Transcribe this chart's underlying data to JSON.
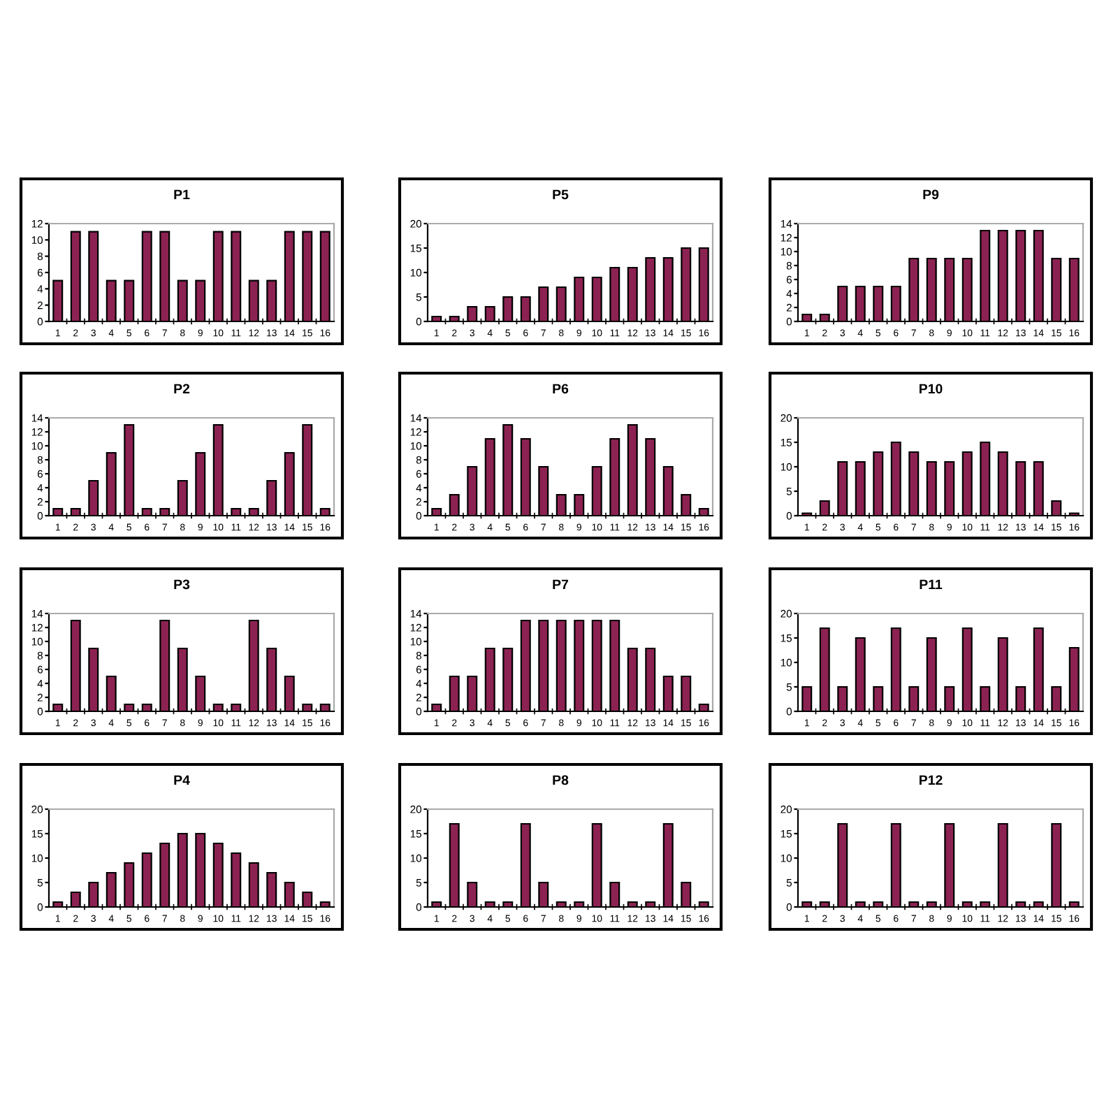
{
  "chart_data": [
    {
      "type": "bar",
      "title": "P1",
      "categories": [
        "1",
        "2",
        "3",
        "4",
        "5",
        "6",
        "7",
        "8",
        "9",
        "10",
        "11",
        "12",
        "13",
        "14",
        "15",
        "16"
      ],
      "values": [
        5,
        11,
        11,
        5,
        5,
        11,
        11,
        5,
        5,
        11,
        11,
        5,
        5,
        11,
        11,
        11
      ],
      "color": "#8b2252",
      "ylim": [
        0,
        12
      ],
      "yticks": [
        0,
        2,
        4,
        6,
        8,
        10,
        12
      ],
      "grid": false
    },
    {
      "type": "bar",
      "title": "P2",
      "categories": [
        "1",
        "2",
        "3",
        "4",
        "5",
        "6",
        "7",
        "8",
        "9",
        "10",
        "11",
        "12",
        "13",
        "14",
        "15",
        "16"
      ],
      "values": [
        1,
        1,
        5,
        9,
        13,
        1,
        1,
        5,
        9,
        13,
        1,
        1,
        5,
        9,
        13,
        1
      ],
      "color": "#8b2252",
      "ylim": [
        0,
        14
      ],
      "yticks": [
        0,
        2,
        4,
        6,
        8,
        10,
        12,
        14
      ],
      "grid": false
    },
    {
      "type": "bar",
      "title": "P3",
      "categories": [
        "1",
        "2",
        "3",
        "4",
        "5",
        "6",
        "7",
        "8",
        "9",
        "10",
        "11",
        "12",
        "13",
        "14",
        "15",
        "16"
      ],
      "values": [
        1,
        13,
        9,
        5,
        1,
        1,
        13,
        9,
        5,
        1,
        1,
        13,
        9,
        5,
        1,
        1
      ],
      "color": "#8b2252",
      "ylim": [
        0,
        14
      ],
      "yticks": [
        0,
        2,
        4,
        6,
        8,
        10,
        12,
        14
      ],
      "grid": false
    },
    {
      "type": "bar",
      "title": "P4",
      "categories": [
        "1",
        "2",
        "3",
        "4",
        "5",
        "6",
        "7",
        "8",
        "9",
        "10",
        "11",
        "12",
        "13",
        "14",
        "15",
        "16"
      ],
      "values": [
        1,
        3,
        5,
        7,
        9,
        11,
        13,
        15,
        15,
        13,
        11,
        9,
        7,
        5,
        3,
        1
      ],
      "color": "#8b2252",
      "ylim": [
        0,
        20
      ],
      "yticks": [
        0,
        5,
        10,
        15,
        20
      ],
      "grid": false
    },
    {
      "type": "bar",
      "title": "P5",
      "categories": [
        "1",
        "2",
        "3",
        "4",
        "5",
        "6",
        "7",
        "8",
        "9",
        "10",
        "11",
        "12",
        "13",
        "14",
        "15",
        "16"
      ],
      "values": [
        1,
        1,
        3,
        3,
        5,
        5,
        7,
        7,
        9,
        9,
        11,
        11,
        13,
        13,
        15,
        15
      ],
      "color": "#8b2252",
      "ylim": [
        0,
        20
      ],
      "yticks": [
        0,
        5,
        10,
        15,
        20
      ],
      "grid": false
    },
    {
      "type": "bar",
      "title": "P6",
      "categories": [
        "1",
        "2",
        "3",
        "4",
        "5",
        "6",
        "7",
        "8",
        "9",
        "10",
        "11",
        "12",
        "13",
        "14",
        "15",
        "16"
      ],
      "values": [
        1,
        3,
        7,
        11,
        13,
        11,
        7,
        3,
        3,
        7,
        11,
        13,
        11,
        7,
        3,
        1
      ],
      "color": "#8b2252",
      "ylim": [
        0,
        14
      ],
      "yticks": [
        0,
        2,
        4,
        6,
        8,
        10,
        12,
        14
      ],
      "grid": false
    },
    {
      "type": "bar",
      "title": "P7",
      "categories": [
        "1",
        "2",
        "3",
        "4",
        "5",
        "6",
        "7",
        "8",
        "9",
        "10",
        "11",
        "12",
        "13",
        "14",
        "15",
        "16"
      ],
      "values": [
        1,
        5,
        5,
        9,
        9,
        13,
        13,
        13,
        13,
        13,
        13,
        9,
        9,
        5,
        5,
        1
      ],
      "color": "#8b2252",
      "ylim": [
        0,
        14
      ],
      "yticks": [
        0,
        2,
        4,
        6,
        8,
        10,
        12,
        14
      ],
      "grid": false
    },
    {
      "type": "bar",
      "title": "P8",
      "categories": [
        "1",
        "2",
        "3",
        "4",
        "5",
        "6",
        "7",
        "8",
        "9",
        "10",
        "11",
        "12",
        "13",
        "14",
        "15",
        "16"
      ],
      "values": [
        1,
        17,
        5,
        1,
        1,
        17,
        5,
        1,
        1,
        17,
        5,
        1,
        1,
        17,
        5,
        1
      ],
      "color": "#8b2252",
      "ylim": [
        0,
        20
      ],
      "yticks": [
        0,
        5,
        10,
        15,
        20
      ],
      "grid": false
    },
    {
      "type": "bar",
      "title": "P9",
      "categories": [
        "1",
        "2",
        "3",
        "4",
        "5",
        "6",
        "7",
        "8",
        "9",
        "10",
        "11",
        "12",
        "13",
        "14",
        "15",
        "16"
      ],
      "values": [
        1,
        1,
        5,
        5,
        5,
        5,
        9,
        9,
        9,
        9,
        13,
        13,
        13,
        13,
        9,
        9
      ],
      "color": "#8b2252",
      "ylim": [
        0,
        14
      ],
      "yticks": [
        0,
        2,
        4,
        6,
        8,
        10,
        12,
        14
      ],
      "grid": false
    },
    {
      "type": "bar",
      "title": "P10",
      "categories": [
        "1",
        "2",
        "3",
        "4",
        "5",
        "6",
        "7",
        "8",
        "9",
        "10",
        "11",
        "12",
        "13",
        "14",
        "15",
        "16"
      ],
      "values": [
        0.5,
        3,
        11,
        11,
        13,
        15,
        13,
        11,
        11,
        13,
        15,
        13,
        11,
        11,
        3,
        0.5
      ],
      "color": "#8b2252",
      "ylim": [
        0,
        20
      ],
      "yticks": [
        0,
        5,
        10,
        15,
        20
      ],
      "grid": false
    },
    {
      "type": "bar",
      "title": "P11",
      "categories": [
        "1",
        "2",
        "3",
        "4",
        "5",
        "6",
        "7",
        "8",
        "9",
        "10",
        "11",
        "12",
        "13",
        "14",
        "15",
        "16"
      ],
      "values": [
        5,
        17,
        5,
        15,
        5,
        17,
        5,
        15,
        5,
        17,
        5,
        15,
        5,
        17,
        5,
        13
      ],
      "color": "#8b2252",
      "ylim": [
        0,
        20
      ],
      "yticks": [
        0,
        5,
        10,
        15,
        20
      ],
      "grid": false
    },
    {
      "type": "bar",
      "title": "P12",
      "categories": [
        "1",
        "2",
        "3",
        "4",
        "5",
        "6",
        "7",
        "8",
        "9",
        "10",
        "11",
        "12",
        "13",
        "14",
        "15",
        "16"
      ],
      "values": [
        1,
        1,
        17,
        1,
        1,
        17,
        1,
        1,
        17,
        1,
        1,
        17,
        1,
        1,
        17,
        1
      ],
      "color": "#8b2252",
      "ylim": [
        0,
        20
      ],
      "yticks": [
        0,
        5,
        10,
        15,
        20
      ],
      "grid": false
    }
  ]
}
